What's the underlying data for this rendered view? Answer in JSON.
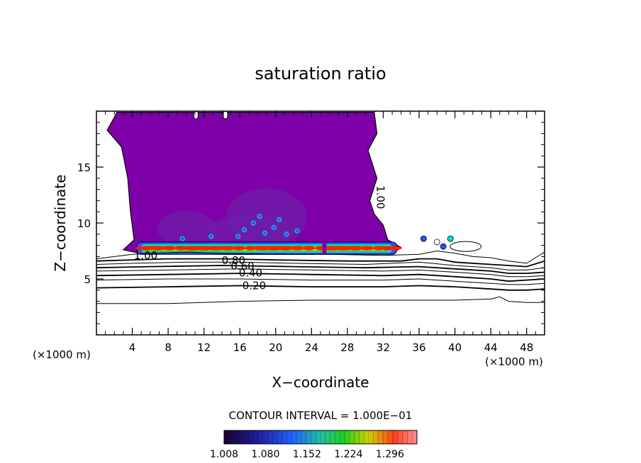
{
  "chart_data": {
    "type": "contour",
    "title": "saturation ratio",
    "xlabel": "X−coordinate",
    "ylabel": "Z−coordinate",
    "x_unit_left": "(×1000 m)",
    "x_unit_right": "(×1000 m)",
    "xlim": [
      0,
      50
    ],
    "ylim": [
      0,
      20
    ],
    "x_ticks": [
      "4",
      "8",
      "12",
      "16",
      "20",
      "24",
      "28",
      "32",
      "36",
      "40",
      "44",
      "48"
    ],
    "y_ticks": [
      "5",
      "10",
      "15"
    ],
    "contour_interval_text": "CONTOUR INTERVAL = 1.000E−01",
    "contour_labels": [
      "1.00",
      "0.80",
      "0.60",
      "0.40",
      "0.20"
    ],
    "colorbar_labels": [
      "1.008",
      "1.080",
      "1.152",
      "1.224",
      "1.296"
    ],
    "colorbar_range": [
      1.008,
      1.296
    ],
    "colors": {
      "fill_main": "#7d00a8",
      "fill_dark": "#6c1fa6",
      "cloud_blue": "#3050ff",
      "cloud_cyan": "#00e0e0",
      "cloud_green": "#20d020",
      "cloud_yellow": "#e8e800",
      "cloud_red": "#ff2000"
    },
    "contour_lines": [
      {
        "level": "0.90",
        "pts": [
          [
            0,
            6.8
          ],
          [
            2,
            7.0
          ],
          [
            4,
            7.2
          ],
          [
            6,
            7.3
          ],
          [
            10,
            7.4
          ],
          [
            14,
            7.3
          ],
          [
            20,
            7.2
          ],
          [
            26,
            7.2
          ],
          [
            32,
            7.1
          ],
          [
            36,
            7.2
          ],
          [
            38,
            7.5
          ],
          [
            40,
            7.3
          ],
          [
            42,
            7.0
          ],
          [
            44,
            6.9
          ],
          [
            46,
            6.6
          ],
          [
            48,
            6.4
          ],
          [
            50,
            7.4
          ]
        ]
      },
      {
        "level": "0.80",
        "pts": [
          [
            0,
            6.6
          ],
          [
            4,
            6.7
          ],
          [
            8,
            6.8
          ],
          [
            14,
            6.8
          ],
          [
            20,
            6.7
          ],
          [
            28,
            6.6
          ],
          [
            34,
            6.6
          ],
          [
            36,
            6.8
          ],
          [
            38,
            6.8
          ],
          [
            40,
            6.5
          ],
          [
            44,
            6.3
          ],
          [
            46,
            6.2
          ],
          [
            48,
            6.1
          ],
          [
            50,
            6.6
          ]
        ]
      },
      {
        "level": "0.70",
        "pts": [
          [
            0,
            6.3
          ],
          [
            4,
            6.4
          ],
          [
            10,
            6.5
          ],
          [
            16,
            6.5
          ],
          [
            22,
            6.4
          ],
          [
            30,
            6.3
          ],
          [
            36,
            6.5
          ],
          [
            40,
            6.2
          ],
          [
            44,
            6.0
          ],
          [
            46,
            5.8
          ],
          [
            48,
            5.8
          ],
          [
            50,
            6.0
          ]
        ]
      },
      {
        "level": "0.60",
        "pts": [
          [
            0,
            6.0
          ],
          [
            6,
            6.1
          ],
          [
            14,
            6.2
          ],
          [
            22,
            6.1
          ],
          [
            30,
            6.0
          ],
          [
            36,
            6.1
          ],
          [
            40,
            5.9
          ],
          [
            44,
            5.7
          ],
          [
            46,
            5.5
          ],
          [
            48,
            5.5
          ],
          [
            50,
            5.6
          ]
        ]
      },
      {
        "level": "0.50",
        "pts": [
          [
            0,
            5.7
          ],
          [
            8,
            5.8
          ],
          [
            16,
            5.9
          ],
          [
            24,
            5.8
          ],
          [
            32,
            5.7
          ],
          [
            36,
            5.8
          ],
          [
            40,
            5.6
          ],
          [
            44,
            5.4
          ],
          [
            46,
            5.2
          ],
          [
            48,
            5.2
          ],
          [
            50,
            5.3
          ]
        ]
      },
      {
        "level": "0.40",
        "pts": [
          [
            0,
            5.3
          ],
          [
            8,
            5.4
          ],
          [
            16,
            5.5
          ],
          [
            24,
            5.4
          ],
          [
            32,
            5.3
          ],
          [
            36,
            5.4
          ],
          [
            40,
            5.2
          ],
          [
            44,
            5.0
          ],
          [
            46,
            4.8
          ],
          [
            48,
            4.9
          ],
          [
            50,
            5.0
          ]
        ]
      },
      {
        "level": "0.30",
        "pts": [
          [
            0,
            4.9
          ],
          [
            8,
            5.0
          ],
          [
            16,
            5.0
          ],
          [
            24,
            4.9
          ],
          [
            32,
            4.9
          ],
          [
            36,
            5.0
          ],
          [
            40,
            4.8
          ],
          [
            44,
            4.6
          ],
          [
            46,
            4.5
          ],
          [
            48,
            4.5
          ],
          [
            50,
            4.6
          ]
        ]
      },
      {
        "level": "0.20",
        "pts": [
          [
            0,
            4.2
          ],
          [
            8,
            4.3
          ],
          [
            16,
            4.4
          ],
          [
            24,
            4.3
          ],
          [
            32,
            4.3
          ],
          [
            36,
            4.4
          ],
          [
            40,
            4.3
          ],
          [
            44,
            4.1
          ],
          [
            46,
            4.0
          ],
          [
            48,
            4.0
          ],
          [
            50,
            4.1
          ]
        ]
      },
      {
        "level": "0.10",
        "pts": [
          [
            0,
            2.8
          ],
          [
            8,
            2.8
          ],
          [
            16,
            3.0
          ],
          [
            24,
            3.1
          ],
          [
            32,
            3.1
          ],
          [
            40,
            3.1
          ],
          [
            44,
            3.2
          ],
          [
            45,
            3.4
          ],
          [
            46,
            3.0
          ],
          [
            48,
            2.9
          ],
          [
            50,
            2.9
          ]
        ]
      }
    ],
    "supersat_region": [
      [
        2.3,
        19.9
      ],
      [
        1.2,
        18.3
      ],
      [
        2.8,
        16.8
      ],
      [
        3.5,
        14.0
      ],
      [
        3.8,
        11.0
      ],
      [
        4.2,
        8.5
      ],
      [
        3.0,
        7.6
      ],
      [
        4.8,
        7.3
      ],
      [
        14,
        7.2
      ],
      [
        24,
        7.2
      ],
      [
        33,
        7.3
      ],
      [
        34,
        7.8
      ],
      [
        32.5,
        8.5
      ],
      [
        32,
        9.8
      ],
      [
        31,
        10.8
      ],
      [
        30.5,
        12.0
      ],
      [
        31.3,
        14.0
      ],
      [
        30.3,
        16.5
      ],
      [
        31.3,
        18.0
      ],
      [
        31,
        19.9
      ]
    ],
    "cloud_band": [
      [
        4.5,
        7.6
      ],
      [
        8,
        7.6
      ],
      [
        12,
        7.6
      ],
      [
        16,
        7.6
      ],
      [
        20,
        7.6
      ],
      [
        24,
        7.6
      ],
      [
        28,
        7.6
      ],
      [
        32,
        7.6
      ],
      [
        33.5,
        7.6
      ]
    ]
  }
}
